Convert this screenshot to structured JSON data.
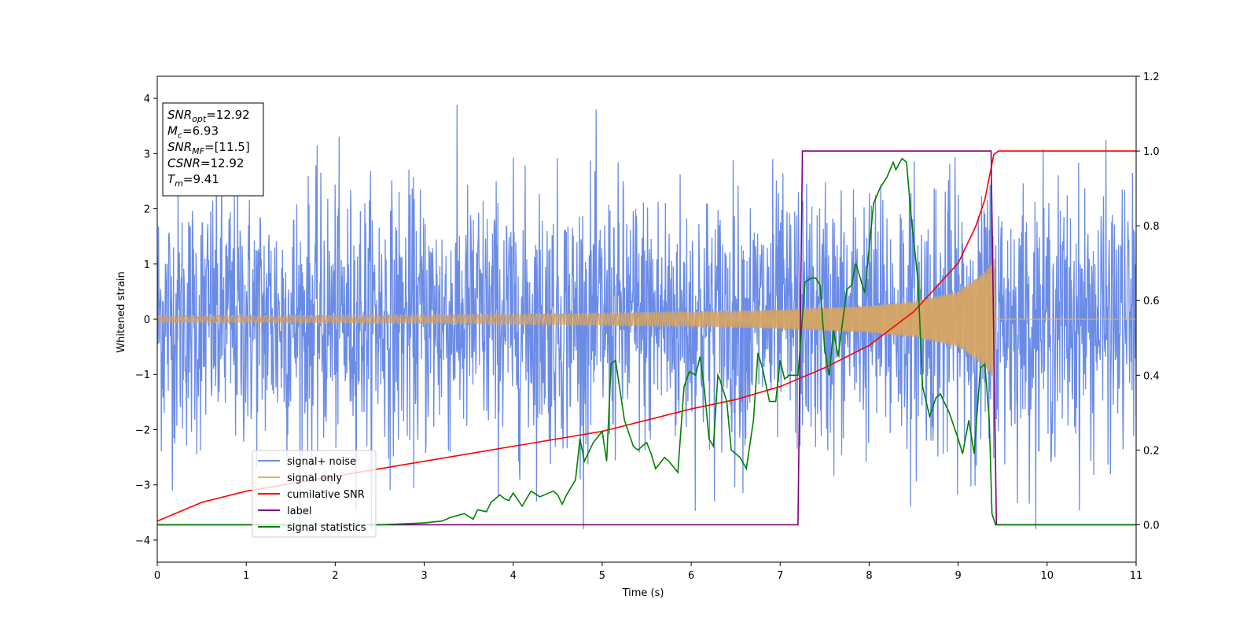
{
  "chart_data": {
    "type": "line",
    "title": "",
    "xlabel": "Time (s)",
    "ylabel": "Whitened strain",
    "xlim": [
      0,
      11
    ],
    "ylim": [
      -4.4,
      4.4
    ],
    "y2lim": [
      -0.1,
      1.2
    ],
    "x_ticks": [
      0,
      1,
      2,
      3,
      4,
      5,
      6,
      7,
      8,
      9,
      10,
      11
    ],
    "y_ticks": [
      -4,
      -3,
      -2,
      -1,
      0,
      1,
      2,
      3,
      4
    ],
    "y_tick_labels": [
      "−4",
      "−3",
      "−2",
      "−1",
      "0",
      "1",
      "2",
      "3",
      "4"
    ],
    "y2_ticks": [
      0.0,
      0.2,
      0.4,
      0.6,
      0.8,
      1.0,
      1.2
    ],
    "y2_tick_labels": [
      "0.0",
      "0.2",
      "0.4",
      "0.6",
      "0.8",
      "1.0",
      "1.2"
    ],
    "grid": false,
    "legend_position": "lower-left",
    "info_box": {
      "position": "top-left",
      "lines": [
        {
          "base": "SNR",
          "sub": "opt",
          "value": "=12.92"
        },
        {
          "base": "M",
          "sub": "c",
          "value": "=6.93"
        },
        {
          "base": "SNR",
          "sub": "MF",
          "value": "=[11.5]"
        },
        {
          "base": "CSNR",
          "sub": "",
          "value": "=12.92"
        },
        {
          "base": "T",
          "sub": "m",
          "value": "=9.41"
        }
      ]
    },
    "series": [
      {
        "name": "signal+ noise",
        "axis": "left",
        "color": "#6b8ce6",
        "kind": "noise",
        "sigma": 1.0,
        "approx_range": [
          -3.8,
          4.2
        ],
        "x_range": [
          0,
          11
        ]
      },
      {
        "name": "signal only",
        "axis": "left",
        "color": "#e8b35a",
        "kind": "chirp",
        "t_merger": 9.41,
        "envelope": {
          "t": [
            0,
            2,
            4,
            6,
            7,
            8,
            8.5,
            9,
            9.3,
            9.41
          ],
          "amp": [
            0.06,
            0.07,
            0.09,
            0.13,
            0.17,
            0.24,
            0.32,
            0.5,
            0.85,
            1.1
          ]
        }
      },
      {
        "name": "cumilative SNR",
        "axis": "right",
        "color": "#ff0000",
        "x": [
          0,
          0.5,
          1,
          2,
          3,
          4,
          5,
          6,
          6.5,
          7,
          7.5,
          8,
          8.5,
          9,
          9.2,
          9.3,
          9.4,
          9.45,
          11
        ],
        "y": [
          0.01,
          0.06,
          0.09,
          0.13,
          0.17,
          0.21,
          0.25,
          0.31,
          0.335,
          0.37,
          0.42,
          0.48,
          0.57,
          0.7,
          0.8,
          0.87,
          0.99,
          1.0,
          1.0
        ]
      },
      {
        "name": "label",
        "axis": "right",
        "color": "#800080",
        "x": [
          0,
          7.2,
          7.25,
          9.37,
          9.43,
          11
        ],
        "y": [
          0,
          0,
          1,
          1,
          0,
          0
        ]
      },
      {
        "name": "signal statistics",
        "axis": "right",
        "color": "#008000",
        "x": [
          0,
          0.5,
          1,
          1.5,
          2,
          2.5,
          2.7,
          3,
          3.2,
          3.3,
          3.45,
          3.55,
          3.6,
          3.7,
          3.75,
          3.85,
          3.9,
          3.95,
          4.0,
          4.1,
          4.2,
          4.3,
          4.35,
          4.45,
          4.5,
          4.55,
          4.6,
          4.7,
          4.75,
          4.8,
          4.9,
          5.0,
          5.05,
          5.1,
          5.15,
          5.25,
          5.35,
          5.4,
          5.5,
          5.55,
          5.6,
          5.7,
          5.75,
          5.85,
          5.92,
          5.98,
          6.05,
          6.1,
          6.15,
          6.2,
          6.25,
          6.3,
          6.32,
          6.4,
          6.45,
          6.55,
          6.62,
          6.7,
          6.75,
          6.8,
          6.88,
          6.95,
          7.0,
          7.05,
          7.1,
          7.2,
          7.28,
          7.35,
          7.4,
          7.45,
          7.5,
          7.55,
          7.6,
          7.65,
          7.75,
          7.8,
          7.85,
          7.95,
          8.05,
          8.12,
          8.2,
          8.27,
          8.3,
          8.37,
          8.42,
          8.47,
          8.55,
          8.6,
          8.68,
          8.75,
          8.8,
          8.9,
          9.0,
          9.05,
          9.12,
          9.18,
          9.25,
          9.3,
          9.35,
          9.38,
          9.42,
          9.45,
          9.6,
          10,
          10.5,
          11
        ],
        "y": [
          0.0,
          0.0,
          0.0,
          0.0,
          0.0,
          0.0,
          0.002,
          0.005,
          0.01,
          0.02,
          0.03,
          0.015,
          0.04,
          0.035,
          0.06,
          0.08,
          0.07,
          0.065,
          0.085,
          0.05,
          0.09,
          0.075,
          0.08,
          0.09,
          0.08,
          0.055,
          0.08,
          0.12,
          0.23,
          0.17,
          0.22,
          0.25,
          0.17,
          0.43,
          0.44,
          0.28,
          0.21,
          0.2,
          0.22,
          0.19,
          0.15,
          0.18,
          0.17,
          0.14,
          0.37,
          0.41,
          0.4,
          0.45,
          0.36,
          0.23,
          0.21,
          0.4,
          0.39,
          0.33,
          0.2,
          0.18,
          0.15,
          0.28,
          0.46,
          0.42,
          0.33,
          0.33,
          0.44,
          0.39,
          0.4,
          0.4,
          0.65,
          0.66,
          0.66,
          0.64,
          0.47,
          0.4,
          0.52,
          0.45,
          0.63,
          0.64,
          0.7,
          0.62,
          0.86,
          0.9,
          0.93,
          0.97,
          0.95,
          0.98,
          0.97,
          0.83,
          0.65,
          0.37,
          0.29,
          0.34,
          0.35,
          0.3,
          0.23,
          0.19,
          0.28,
          0.19,
          0.42,
          0.43,
          0.28,
          0.03,
          0.0,
          0.0,
          0.0,
          0.0,
          0.0,
          0.0
        ]
      }
    ]
  }
}
